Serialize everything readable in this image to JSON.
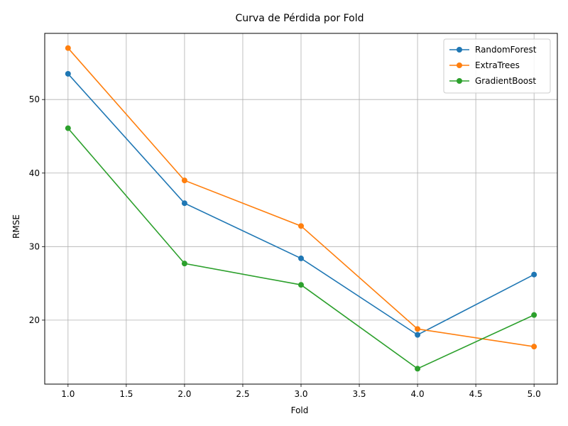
{
  "chart_data": {
    "type": "line",
    "title": "Curva de Pérdida por Fold",
    "xlabel": "Fold",
    "ylabel": "RMSE",
    "x": [
      1.0,
      2.0,
      3.0,
      4.0,
      5.0
    ],
    "xlim": [
      0.8,
      5.2
    ],
    "ylim": [
      11.3,
      59.0
    ],
    "xticks": [
      1.0,
      1.5,
      2.0,
      2.5,
      3.0,
      3.5,
      4.0,
      4.5,
      5.0
    ],
    "xtick_labels": [
      "1.0",
      "1.5",
      "2.0",
      "2.5",
      "3.0",
      "3.5",
      "4.0",
      "4.5",
      "5.0"
    ],
    "yticks": [
      20,
      30,
      40,
      50
    ],
    "ytick_labels": [
      "20",
      "30",
      "40",
      "50"
    ],
    "grid": true,
    "legend_position": "top-right",
    "series": [
      {
        "name": "RandomForest",
        "color": "#1f77b4",
        "values": [
          53.5,
          35.9,
          28.4,
          18.0,
          26.2
        ]
      },
      {
        "name": "ExtraTrees",
        "color": "#ff7f0e",
        "values": [
          57.0,
          39.0,
          32.8,
          18.8,
          16.4
        ]
      },
      {
        "name": "GradientBoost",
        "color": "#2ca02c",
        "values": [
          46.1,
          27.7,
          24.8,
          13.4,
          20.7
        ]
      }
    ]
  }
}
